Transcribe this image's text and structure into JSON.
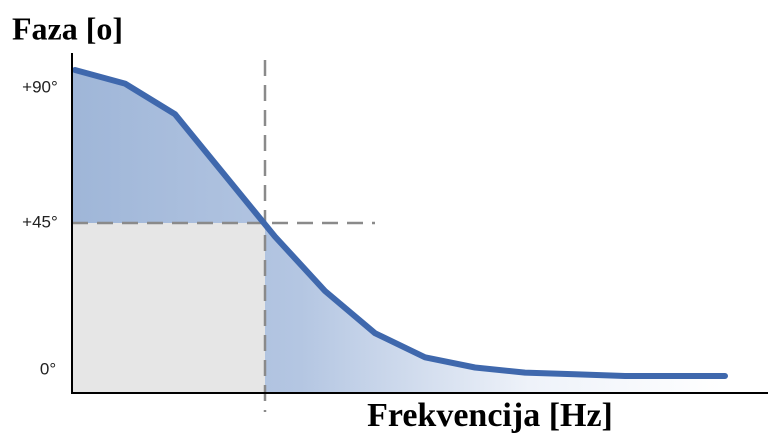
{
  "chart_data": {
    "type": "line",
    "title": "Faza [o]",
    "x_label": "Frekvencija [Hz]",
    "categories": [
      null,
      null,
      null,
      null,
      null,
      null,
      null,
      null,
      null,
      null,
      null,
      null,
      null,
      null
    ],
    "series": [
      {
        "color": "#3f68ad",
        "values": [
          90,
          86,
          77,
          59,
          41,
          25,
          12.6,
          5.5,
          2.5,
          1,
          0.5,
          0,
          0,
          0
        ]
      }
    ],
    "ylim": [
      -5,
      95
    ],
    "yticks": [
      {
        "value": 0,
        "label": "0°"
      },
      {
        "value": 45,
        "label": "+45°"
      },
      {
        "value": 90,
        "label": "+90°"
      }
    ]
  }
}
